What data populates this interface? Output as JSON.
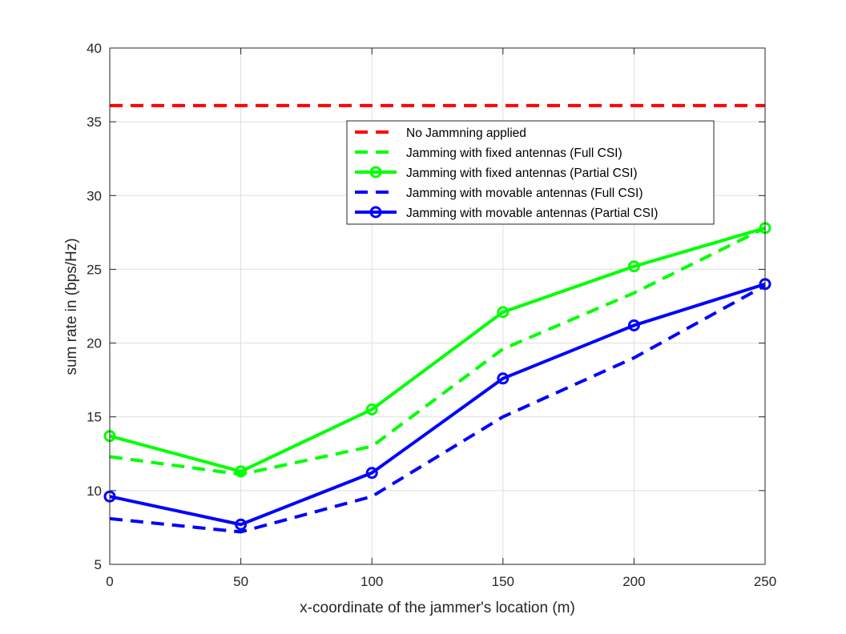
{
  "chart_data": {
    "type": "line",
    "title": "",
    "xlabel": "x-coordinate of the jammer's location (m)",
    "ylabel": "sum rate in (bps/Hz)",
    "x": [
      0,
      50,
      100,
      150,
      200,
      250
    ],
    "xlim": [
      0,
      250
    ],
    "ylim": [
      5,
      40
    ],
    "xticks": [
      0,
      50,
      100,
      150,
      200,
      250
    ],
    "yticks": [
      5,
      10,
      15,
      20,
      25,
      30,
      35,
      40
    ],
    "grid": true,
    "legend_position": "top-right",
    "series": [
      {
        "name": "No Jammning applied",
        "color": "#ff0000",
        "style": "dashed",
        "marker": "none",
        "values": [
          36.1,
          36.1,
          36.1,
          36.1,
          36.1,
          36.1
        ]
      },
      {
        "name": "Jamming with fixed antennas (Full CSI)",
        "color": "#00ff00",
        "style": "dashed",
        "marker": "none",
        "values": [
          12.3,
          11.1,
          13.0,
          19.6,
          23.4,
          27.8
        ]
      },
      {
        "name": "Jamming with fixed antennas (Partial CSI)",
        "color": "#00ff00",
        "style": "solid",
        "marker": "circle",
        "values": [
          13.7,
          11.3,
          15.5,
          22.1,
          25.2,
          27.8
        ]
      },
      {
        "name": "Jamming with movable antennas (Full CSI)",
        "color": "#0000ff",
        "style": "dashed",
        "marker": "none",
        "values": [
          8.1,
          7.2,
          9.6,
          15.0,
          19.0,
          23.9
        ]
      },
      {
        "name": "Jamming with movable antennas (Partial CSI)",
        "color": "#0000ff",
        "style": "solid",
        "marker": "circle",
        "values": [
          9.6,
          7.7,
          11.2,
          17.6,
          21.2,
          24.0
        ]
      }
    ]
  }
}
